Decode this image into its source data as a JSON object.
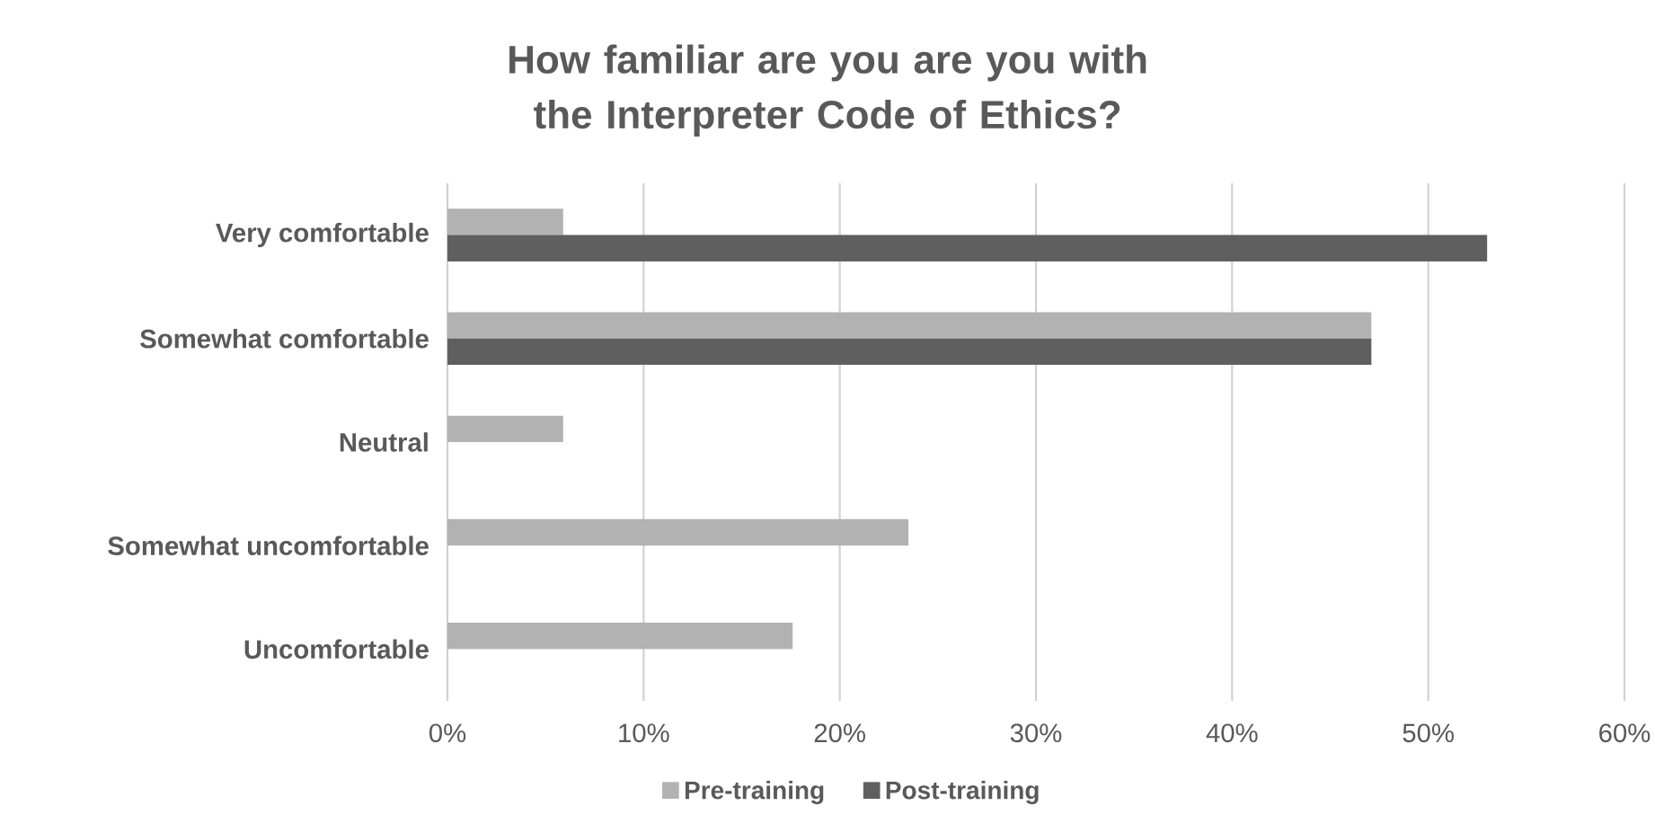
{
  "chart_data": {
    "type": "bar",
    "orientation": "horizontal",
    "title": "How familiar are you are you with the Interpreter Code of Ethics?",
    "categories": [
      "Very comfortable",
      "Somewhat comfortable",
      "Neutral",
      "Somewhat uncomfortable",
      "Uncomfortable"
    ],
    "series": [
      {
        "name": "Pre-training",
        "color": "#b2b2b2",
        "values": [
          5.9,
          47.1,
          5.9,
          23.5,
          17.6
        ]
      },
      {
        "name": "Post-training",
        "color": "#5f5f5f",
        "values": [
          53.0,
          47.1,
          null,
          null,
          null
        ]
      }
    ],
    "xlim": [
      0,
      60
    ],
    "xticks": [
      {
        "value": 0,
        "label": "0%"
      },
      {
        "value": 10,
        "label": "10%"
      },
      {
        "value": 20,
        "label": "20%"
      },
      {
        "value": 30,
        "label": "30%"
      },
      {
        "value": 40,
        "label": "40%"
      },
      {
        "value": 50,
        "label": "50%"
      },
      {
        "value": 60,
        "label": "60%"
      }
    ],
    "grid": "x",
    "legend": "bottom"
  }
}
